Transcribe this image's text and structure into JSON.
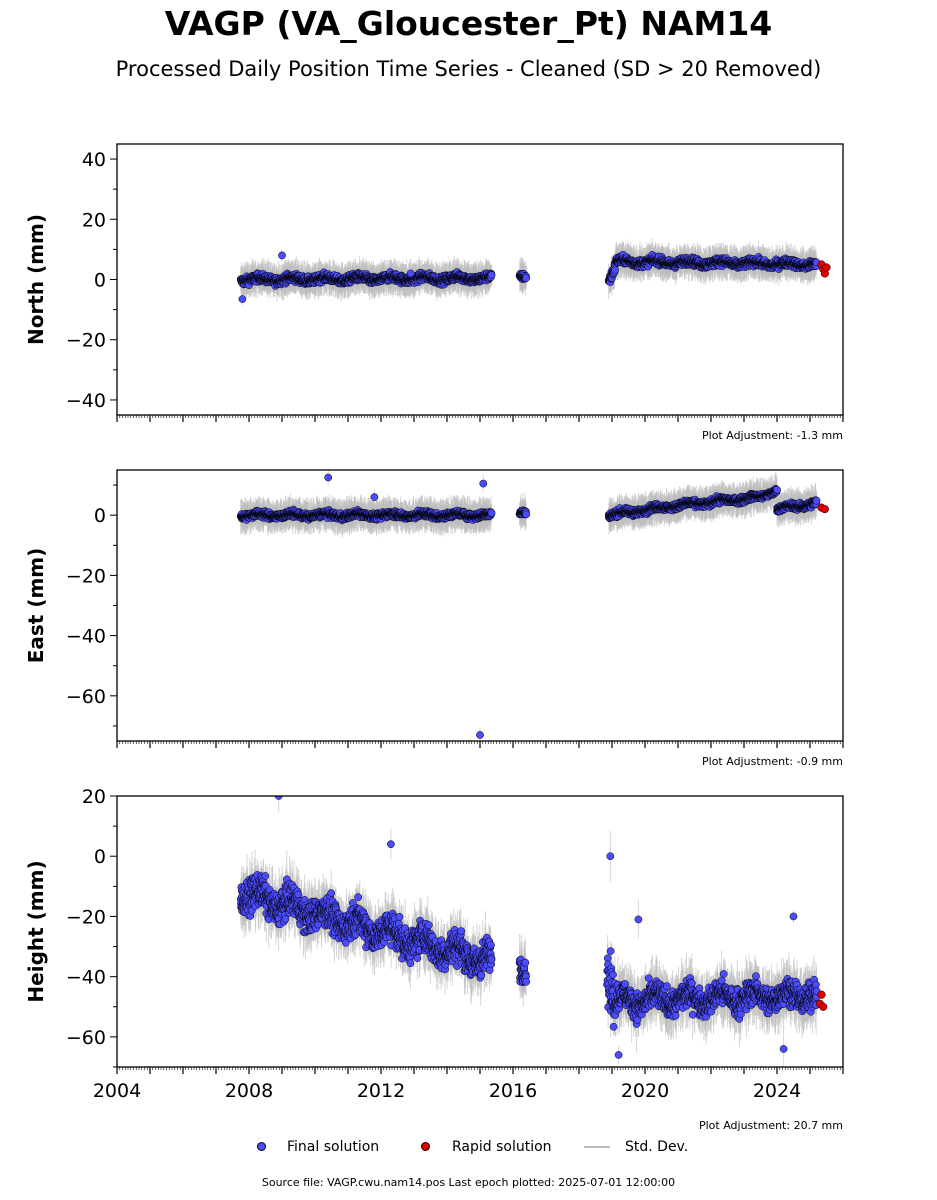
{
  "title": "VAGP (VA_Gloucester_Pt) NAM14",
  "subtitle": "Processed Daily Position Time Series - Cleaned (SD > 20 Removed)",
  "legend": {
    "final": "Final solution",
    "rapid": "Rapid solution",
    "std": "Std. Dev."
  },
  "source": "Source file: VAGP.cwu.nam14.pos  Last epoch plotted: 2025-07-01 12:00:00",
  "colors": {
    "final": "#4b4bff",
    "rapid": "#e00000",
    "std": "#bdbdbd",
    "edge": "#000000"
  },
  "chart_data": [
    {
      "type": "scatter",
      "ylabel": "North (mm)",
      "adjustment": "Plot Adjustment: -1.3 mm",
      "xlim": [
        2004,
        2026
      ],
      "ylim": [
        -45,
        45
      ],
      "yticks": [
        -40,
        -20,
        0,
        20,
        40
      ],
      "x_ticks": [
        2004,
        2008,
        2012,
        2016,
        2020,
        2024
      ],
      "series": [
        {
          "segments": [
            {
              "x0": 2007.75,
              "x1": 2015.35,
              "base": 0.0,
              "end": 0.5,
              "spread": 1.5
            },
            {
              "x0": 2016.2,
              "x1": 2016.4,
              "base": 0.5,
              "end": 0.5,
              "spread": 1.2
            },
            {
              "x0": 2018.9,
              "x1": 2019.1,
              "base": 0.0,
              "end": 4.0,
              "spread": 2.0
            },
            {
              "x0": 2019.1,
              "x1": 2025.2,
              "base": 6.0,
              "end": 5.0,
              "spread": 1.5
            }
          ],
          "outliers": [
            [
              2007.8,
              -6.5
            ],
            [
              2012.9,
              2.0
            ],
            [
              2009.0,
              8.0
            ]
          ]
        },
        {
          "rapid": [
            [
              2025.35,
              5.0
            ],
            [
              2025.4,
              3.5
            ],
            [
              2025.45,
              2.0
            ],
            [
              2025.5,
              4.0
            ]
          ]
        }
      ]
    },
    {
      "type": "scatter",
      "ylabel": "East (mm)",
      "adjustment": "Plot Adjustment: -0.9 mm",
      "xlim": [
        2004,
        2026
      ],
      "ylim": [
        -75,
        15
      ],
      "yticks": [
        -60,
        -40,
        -20,
        0
      ],
      "x_ticks": [
        2004,
        2008,
        2012,
        2016,
        2020,
        2024
      ],
      "series": [
        {
          "segments": [
            {
              "x0": 2007.75,
              "x1": 2015.35,
              "base": 0.0,
              "end": 0.0,
              "spread": 1.2
            },
            {
              "x0": 2016.2,
              "x1": 2016.4,
              "base": 0.5,
              "end": 0.5,
              "spread": 1.0
            },
            {
              "x0": 2018.9,
              "x1": 2020.8,
              "base": 0.0,
              "end": 3.0,
              "spread": 1.2
            },
            {
              "x0": 2020.8,
              "x1": 2023.5,
              "base": 3.0,
              "end": 6.0,
              "spread": 1.2
            },
            {
              "x0": 2023.5,
              "x1": 2024.0,
              "base": 6.0,
              "end": 8.5,
              "spread": 1.0
            },
            {
              "x0": 2024.0,
              "x1": 2025.2,
              "base": 2.0,
              "end": 4.0,
              "spread": 1.2
            }
          ],
          "outliers": [
            [
              2010.4,
              12.5
            ],
            [
              2015.1,
              10.5
            ],
            [
              2015.0,
              -73.0
            ],
            [
              2011.8,
              6.0
            ]
          ]
        },
        {
          "rapid": [
            [
              2025.35,
              2.5
            ],
            [
              2025.45,
              2.0
            ]
          ]
        }
      ]
    },
    {
      "type": "scatter",
      "ylabel": "Height (mm)",
      "adjustment": "Plot Adjustment: 20.7 mm",
      "xlim": [
        2004,
        2026
      ],
      "ylim": [
        -70,
        20
      ],
      "yticks": [
        -60,
        -40,
        -20,
        0,
        20
      ],
      "x_ticks": [
        2004,
        2008,
        2012,
        2016,
        2020,
        2024
      ],
      "x_tick_labels": [
        "2004",
        "2008",
        "2012",
        "2016",
        "2020",
        "2024"
      ],
      "series": [
        {
          "segments": [
            {
              "x0": 2007.75,
              "x1": 2015.35,
              "base": -12.0,
              "end": -35.0,
              "spread": 6.0
            },
            {
              "x0": 2016.2,
              "x1": 2016.4,
              "base": -38.0,
              "end": -40.0,
              "spread": 5.0
            },
            {
              "x0": 2018.85,
              "x1": 2019.1,
              "base": -35.0,
              "end": -50.0,
              "spread": 10.0
            },
            {
              "x0": 2019.1,
              "x1": 2025.2,
              "base": -48.0,
              "end": -46.0,
              "spread": 5.0
            }
          ],
          "outliers": [
            [
              2008.9,
              20.0
            ],
            [
              2018.95,
              0.0
            ],
            [
              2012.3,
              4.0
            ],
            [
              2019.2,
              -66.0
            ],
            [
              2019.8,
              -21.0
            ],
            [
              2024.5,
              -20.0
            ],
            [
              2024.2,
              -64.0
            ]
          ]
        },
        {
          "rapid": [
            [
              2025.3,
              -49.0
            ],
            [
              2025.35,
              -46.0
            ],
            [
              2025.4,
              -50.0
            ]
          ]
        }
      ]
    }
  ]
}
